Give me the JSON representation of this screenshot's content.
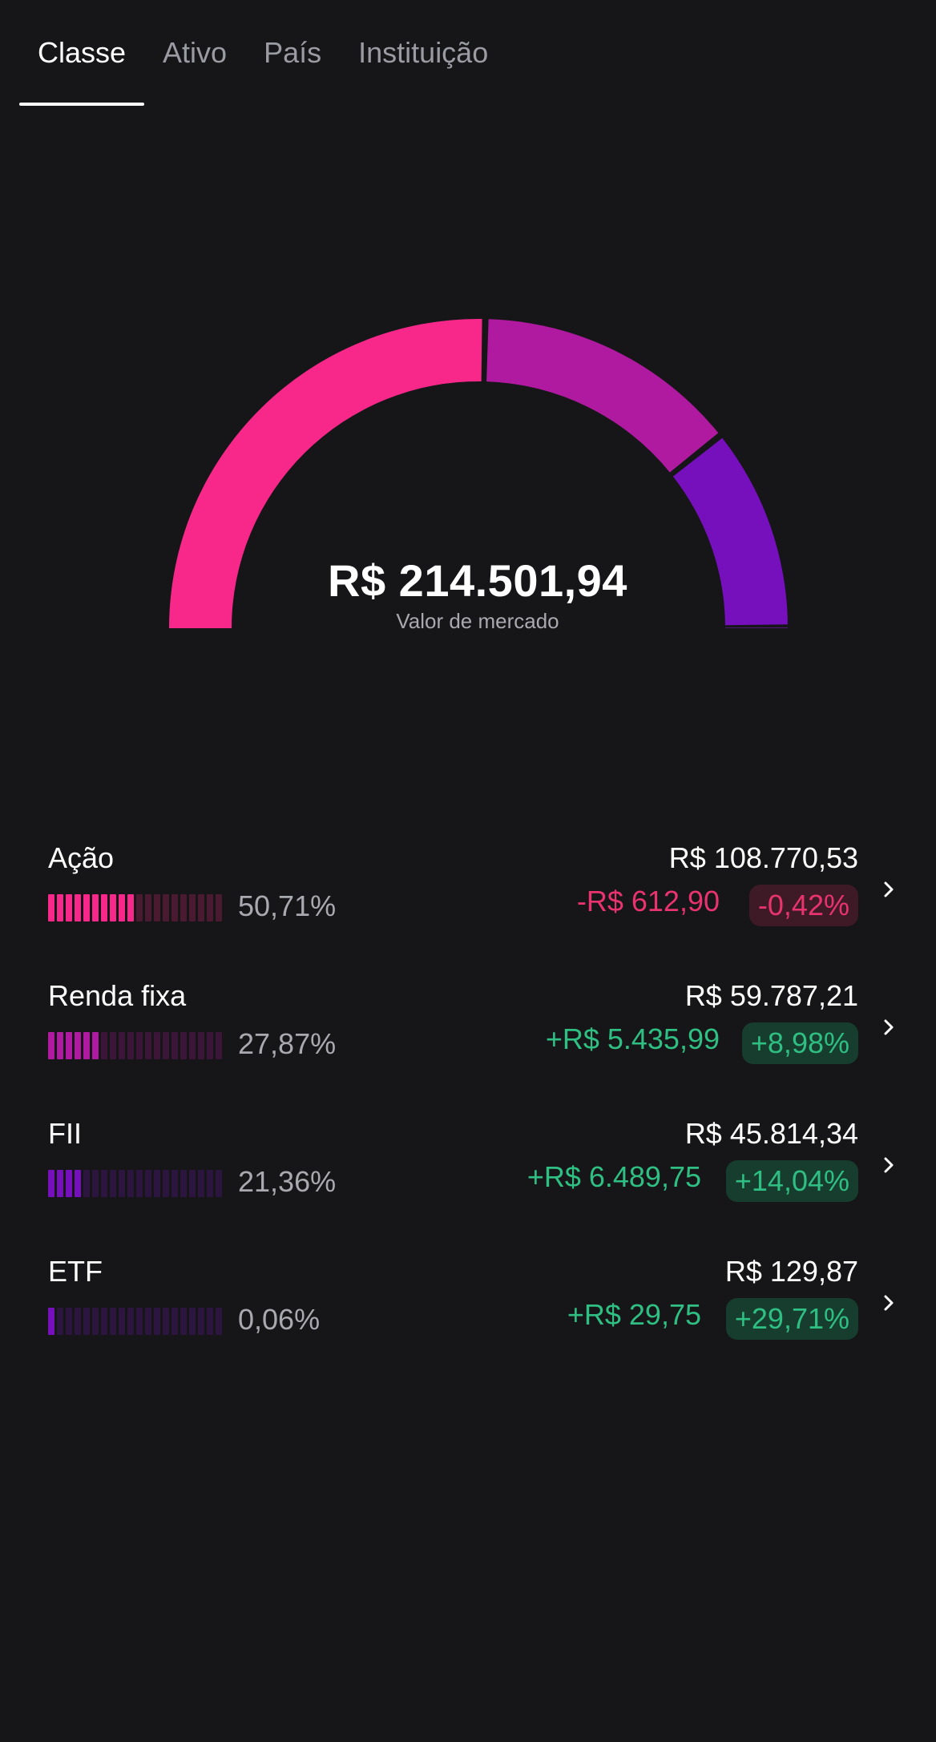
{
  "tabs": [
    {
      "label": "Classe",
      "active": true
    },
    {
      "label": "Ativo",
      "active": false
    },
    {
      "label": "País",
      "active": false
    },
    {
      "label": "Instituição",
      "active": false
    }
  ],
  "summary": {
    "total": "R$ 214.501,94",
    "label": "Valor de mercado"
  },
  "chart_data": {
    "type": "pie",
    "categories": [
      "Ação",
      "Renda fixa",
      "FII",
      "ETF"
    ],
    "values": [
      50.71,
      27.87,
      21.36,
      0.06
    ],
    "colors": [
      "#f7288a",
      "#b01aa1",
      "#7610bd",
      "#6a1aa0"
    ]
  },
  "rows": [
    {
      "name": "Ação",
      "pct": "50,71%",
      "value": "R$ 108.770,53",
      "change": "-R$ 612,90",
      "change_pct": "-0,42%",
      "positive": false,
      "share": 50.71,
      "color": "#f7288a",
      "dim": "#4a1a30"
    },
    {
      "name": "Renda fixa",
      "pct": "27,87%",
      "value": "R$ 59.787,21",
      "change": "+R$ 5.435,99",
      "change_pct": "+8,98%",
      "positive": true,
      "share": 27.87,
      "color": "#b01aa1",
      "dim": "#3c1638"
    },
    {
      "name": "FII",
      "pct": "21,36%",
      "value": "R$ 45.814,34",
      "change": "+R$ 6.489,75",
      "change_pct": "+14,04%",
      "positive": true,
      "share": 21.36,
      "color": "#7610bd",
      "dim": "#2c1640"
    },
    {
      "name": "ETF",
      "pct": "0,06%",
      "value": "R$ 129,87",
      "change": "+R$ 29,75",
      "change_pct": "+29,71%",
      "positive": true,
      "share": 0.06,
      "color": "#7610bd",
      "dim": "#2c1640"
    }
  ]
}
